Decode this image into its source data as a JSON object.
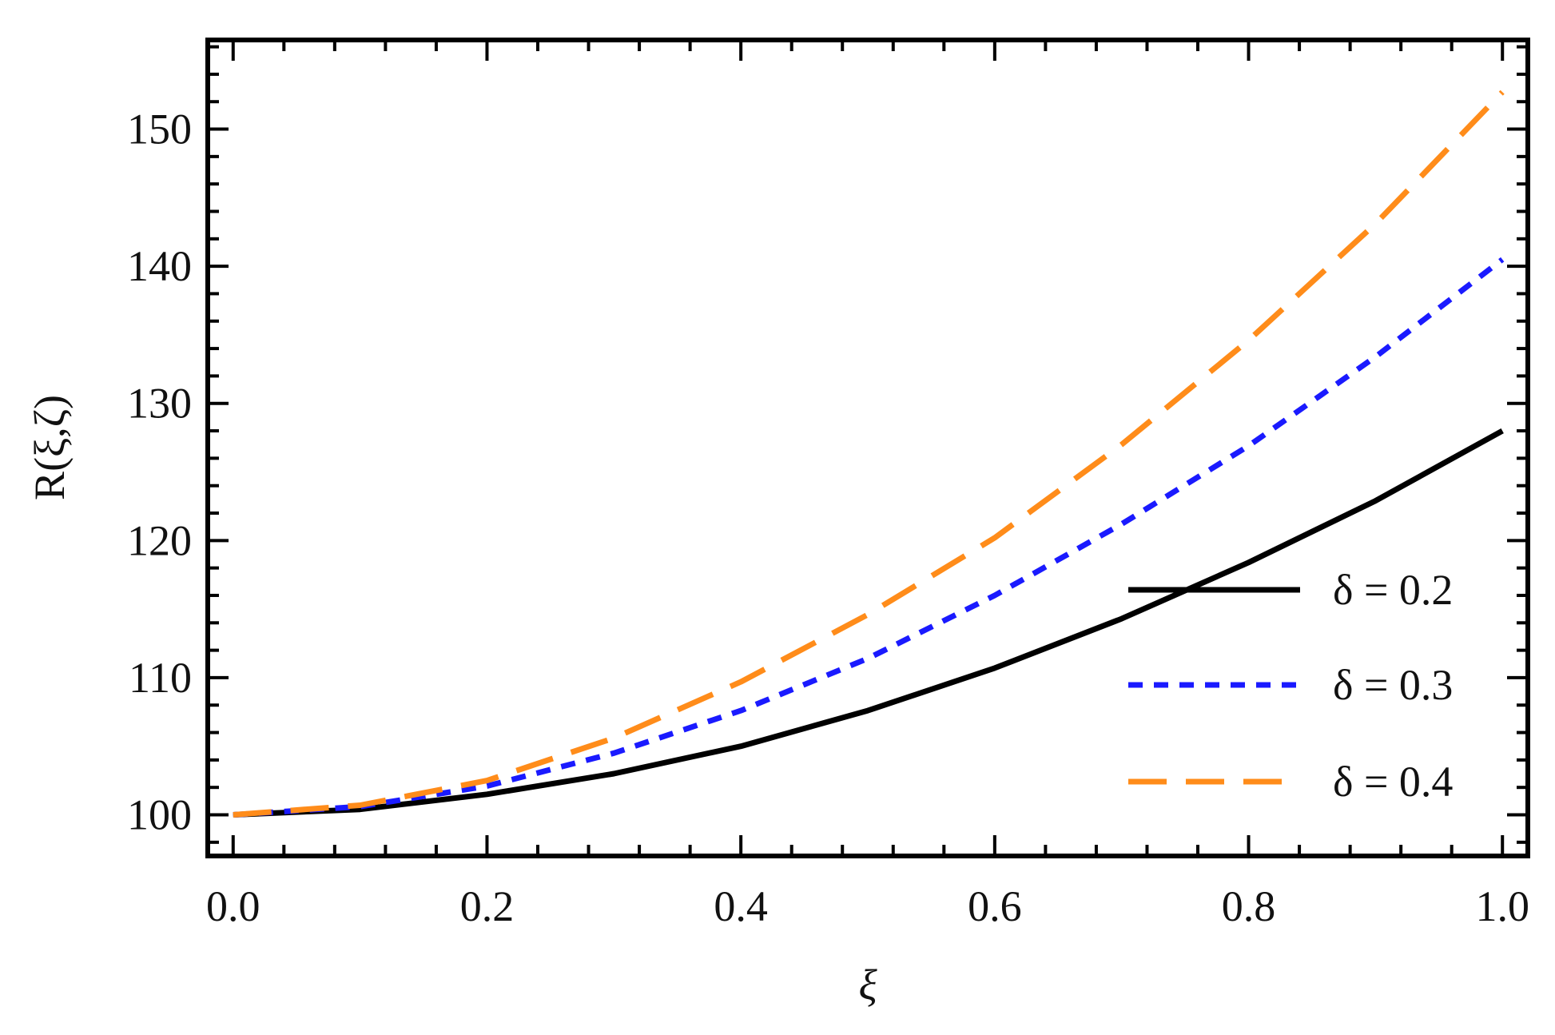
{
  "chart_data": {
    "type": "line",
    "title": "",
    "xlabel": "ξ",
    "ylabel": "R(ξ,ζ)",
    "xlim": [
      -0.02,
      1.02
    ],
    "ylim": [
      97,
      156.5
    ],
    "xticks": [
      0.0,
      0.2,
      0.4,
      0.6,
      0.8,
      1.0
    ],
    "xtick_labels": [
      "0.0",
      "0.2",
      "0.4",
      "0.6",
      "0.8",
      "1.0"
    ],
    "yticks": [
      100,
      110,
      120,
      130,
      140,
      150
    ],
    "ytick_labels": [
      "100",
      "110",
      "120",
      "130",
      "140",
      "150"
    ],
    "grid": false,
    "legend_position": "lower-right",
    "x": [
      0.0,
      0.1,
      0.2,
      0.3,
      0.4,
      0.5,
      0.6,
      0.7,
      0.8,
      0.9,
      1.0
    ],
    "series": [
      {
        "name": "δ = 0.2",
        "color": "#000000",
        "style": "solid",
        "values": [
          100.0,
          100.4,
          101.5,
          103.0,
          105.0,
          107.6,
          110.7,
          114.3,
          118.4,
          122.9,
          128.0
        ]
      },
      {
        "name": "δ = 0.3",
        "color": "#1a1aff",
        "style": "dotted",
        "values": [
          100.0,
          100.6,
          102.1,
          104.5,
          107.6,
          111.4,
          116.0,
          121.2,
          126.9,
          133.4,
          140.5
        ]
      },
      {
        "name": "δ = 0.4",
        "color": "#ff8c1a",
        "style": "dashed",
        "values": [
          100.0,
          100.7,
          102.5,
          105.6,
          109.7,
          114.6,
          120.2,
          127.0,
          134.6,
          143.1,
          152.7
        ]
      }
    ]
  }
}
